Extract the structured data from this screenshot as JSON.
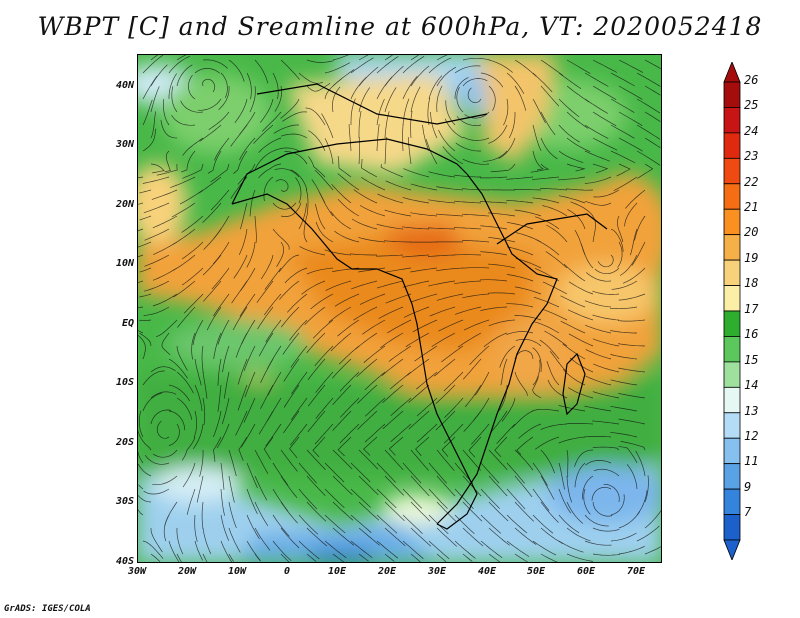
{
  "title": "WBPT [C] and Sreamline at 600hPa, VT: 2020052418",
  "credit": "GrADS: IGES/COLA",
  "lat_labels": [
    "40N",
    "30N",
    "20N",
    "10N",
    "EQ",
    "10S",
    "20S",
    "30S",
    "40S"
  ],
  "lon_labels": [
    "30W",
    "20W",
    "10W",
    "0",
    "10E",
    "20E",
    "30E",
    "40E",
    "50E",
    "60E",
    "70E"
  ],
  "colorbar": {
    "labels": [
      "26",
      "25",
      "24",
      "23",
      "22",
      "21",
      "20",
      "19",
      "18",
      "17",
      "16",
      "15",
      "14",
      "13",
      "12",
      "11",
      "9",
      "7"
    ],
    "colors": [
      "#a50d0d",
      "#c81414",
      "#e02a10",
      "#ef4a12",
      "#f66e14",
      "#fa9020",
      "#f5b048",
      "#f8d27a",
      "#fbeea6",
      "#2fad2f",
      "#5cc75c",
      "#9fe09f",
      "#e6f8f4",
      "#b4dcf6",
      "#86c0ef",
      "#5aa2e6",
      "#3484de",
      "#1c60cc"
    ]
  }
}
